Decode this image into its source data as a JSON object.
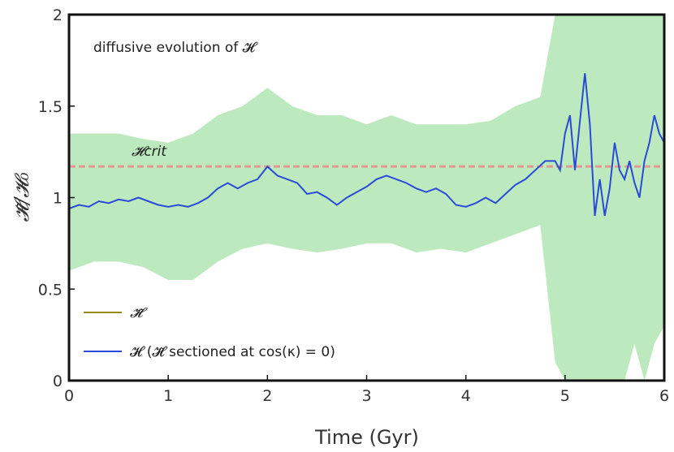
{
  "chart_data": {
    "type": "line",
    "title": "",
    "annotation": "diffusive evolution of 𝓗",
    "xlabel": "Time (Gyr)",
    "ylabel": "𝓗̃/𝓗₀",
    "xlim": [
      0,
      6
    ],
    "ylim": [
      0,
      2
    ],
    "xticks": [
      0,
      1,
      2,
      3,
      4,
      5,
      6
    ],
    "xtick_labels": [
      "0",
      "1",
      "2",
      "3",
      "4",
      "5",
      "6"
    ],
    "yticks": [
      0,
      0.5,
      1,
      1.5,
      2
    ],
    "ytick_labels": [
      "0",
      "0.5",
      "1",
      "1.5",
      "2"
    ],
    "grid": false,
    "critical_line": {
      "label": "𝓗crit",
      "value": 1.17,
      "color": "#e39a93"
    },
    "legend": {
      "position": "bottom-left",
      "entries": [
        {
          "label": "𝓗̃",
          "color": "#9a8a10"
        },
        {
          "label": "𝓗  (𝓗̃ sectioned at cos(κ) = 0)",
          "color": "#2a4bd7"
        }
      ]
    },
    "series": [
      {
        "name": "𝓗̃",
        "color": "#6ccf6e",
        "style": "noisy-band",
        "x": [
          0,
          0.25,
          0.5,
          0.75,
          1.0,
          1.25,
          1.5,
          1.75,
          2.0,
          2.25,
          2.5,
          2.75,
          3.0,
          3.25,
          3.5,
          3.75,
          4.0,
          4.25,
          4.5,
          4.75,
          4.9,
          5.0,
          5.1,
          5.2,
          5.3,
          5.4,
          5.5,
          5.6,
          5.7,
          5.8,
          5.9,
          6.0
        ],
        "lower": [
          0.6,
          0.65,
          0.65,
          0.62,
          0.55,
          0.55,
          0.65,
          0.72,
          0.75,
          0.72,
          0.7,
          0.72,
          0.75,
          0.75,
          0.7,
          0.72,
          0.7,
          0.75,
          0.8,
          0.85,
          0.1,
          0.0,
          0.0,
          0.0,
          0.0,
          0.0,
          0.0,
          0.0,
          0.2,
          0.0,
          0.2,
          0.3
        ],
        "upper": [
          1.35,
          1.35,
          1.35,
          1.32,
          1.3,
          1.35,
          1.45,
          1.5,
          1.6,
          1.5,
          1.45,
          1.45,
          1.4,
          1.45,
          1.4,
          1.4,
          1.4,
          1.42,
          1.5,
          1.55,
          2.0,
          2.0,
          2.0,
          2.0,
          2.0,
          2.0,
          2.0,
          2.0,
          2.0,
          2.0,
          2.0,
          2.0
        ]
      },
      {
        "name": "𝓗",
        "color": "#2a4bd7",
        "x": [
          0,
          0.1,
          0.2,
          0.3,
          0.4,
          0.5,
          0.6,
          0.7,
          0.8,
          0.9,
          1.0,
          1.1,
          1.2,
          1.3,
          1.4,
          1.5,
          1.6,
          1.7,
          1.8,
          1.9,
          2.0,
          2.1,
          2.2,
          2.3,
          2.4,
          2.5,
          2.6,
          2.7,
          2.8,
          2.9,
          3.0,
          3.1,
          3.2,
          3.3,
          3.4,
          3.5,
          3.6,
          3.7,
          3.8,
          3.9,
          4.0,
          4.1,
          4.2,
          4.3,
          4.4,
          4.5,
          4.6,
          4.7,
          4.8,
          4.9,
          4.95,
          5.0,
          5.05,
          5.1,
          5.15,
          5.2,
          5.25,
          5.3,
          5.35,
          5.4,
          5.45,
          5.5,
          5.55,
          5.6,
          5.65,
          5.7,
          5.75,
          5.8,
          5.85,
          5.9,
          5.95,
          6.0
        ],
        "y": [
          0.94,
          0.96,
          0.95,
          0.98,
          0.97,
          0.99,
          0.98,
          1.0,
          0.98,
          0.96,
          0.95,
          0.96,
          0.95,
          0.97,
          1.0,
          1.05,
          1.08,
          1.05,
          1.08,
          1.1,
          1.17,
          1.12,
          1.1,
          1.08,
          1.02,
          1.03,
          1.0,
          0.96,
          1.0,
          1.03,
          1.06,
          1.1,
          1.12,
          1.1,
          1.08,
          1.05,
          1.03,
          1.05,
          1.02,
          0.96,
          0.95,
          0.97,
          1.0,
          0.97,
          1.02,
          1.07,
          1.1,
          1.15,
          1.2,
          1.2,
          1.15,
          1.35,
          1.45,
          1.15,
          1.42,
          1.68,
          1.4,
          0.9,
          1.1,
          0.9,
          1.05,
          1.3,
          1.15,
          1.1,
          1.2,
          1.08,
          1.0,
          1.2,
          1.3,
          1.45,
          1.35,
          1.3
        ]
      }
    ]
  }
}
